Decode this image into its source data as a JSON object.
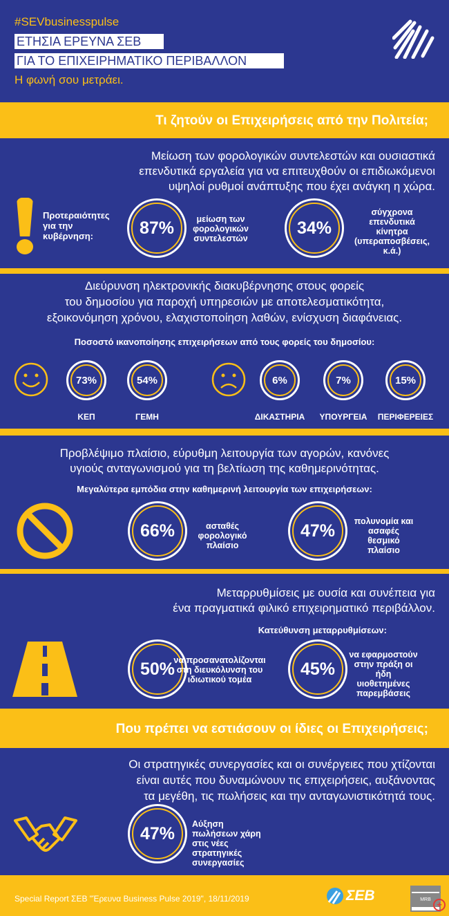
{
  "header": {
    "hashtag": "#SEVbusinesspulse",
    "title_line1": "ΕΤΗΣΙΑ ΕΡΕΥΝΑ ΣΕΒ",
    "title_line2": "ΓΙΑ ΤΟ ΕΠΙΧΕΙΡΗΜΑΤΙΚΟ ΠΕΡΙΒΑΛΛΟΝ",
    "tagline": "Η φωνή σου μετράει."
  },
  "band1": "Τι ζητούν οι Επιχειρήσεις από την Πολιτεία;",
  "s1": {
    "lead": [
      "Μείωση των φορολογικών συντελεστών και ουσιαστικά",
      "επενδυτικά εργαλεία για να επιτευχθούν οι επιδιωκόμενοι",
      "υψηλοί ρυθμοί ανάπτυξης που έχει ανάγκη η χώρα."
    ],
    "label": "Προτεραιότητες για την κυβέρνηση:",
    "items": [
      {
        "value": "87%",
        "text": "μείωση των φορολογικών συντελεστών"
      },
      {
        "value": "34%",
        "text": "σύγχρονα επενδυτικά κίνητρα (υπεραποσβέσεις, κ.ά.)"
      }
    ]
  },
  "s2": {
    "lead": [
      "Διεύρυνση ηλεκτρονικής διακυβέρνησης στους φορείς",
      "του δημοσίου για παροχή υπηρεσιών με αποτελεσματικότητα,",
      "εξοικονόμηση χρόνου, ελαχιστοποίηση λαθών, ενίσχυση διαφάνειας."
    ],
    "subtitle": "Ποσοστό ικανοποίησης επιχειρήσεων από τους φορείς του δημοσίου:",
    "items": [
      {
        "value": "73%",
        "label": "ΚΕΠ"
      },
      {
        "value": "54%",
        "label": "ΓΕΜΗ"
      },
      {
        "value": "6%",
        "label": "ΔΙΚΑΣΤΗΡΙΑ"
      },
      {
        "value": "7%",
        "label": "ΥΠΟΥΡΓΕΙΑ"
      },
      {
        "value": "15%",
        "label": "ΠΕΡΙΦΕΡΕΙΕΣ"
      }
    ]
  },
  "s3": {
    "lead": [
      "Προβλέψιμο πλαίσιο, εύρυθμη λειτουργία των αγορών, κανόνες",
      "υγιούς ανταγωνισμού για τη βελτίωση της καθημερινότητας."
    ],
    "subtitle": "Μεγαλύτερα εμπόδια στην καθημερινή λειτουργία των επιχειρήσεων:",
    "items": [
      {
        "value": "66%",
        "text": "ασταθές φορολογικό πλαίσιο"
      },
      {
        "value": "47%",
        "text": "πολυνομία και ασαφές θεσμικό πλαίσιο"
      }
    ]
  },
  "s4": {
    "lead": [
      "Μεταρρυθμίσεις με ουσία και συνέπεια για",
      "ένα πραγματικά φιλικό επιχειρηματικό περιβάλλον."
    ],
    "subtitle": "Κατεύθυνση μεταρρυθμίσεων:",
    "items": [
      {
        "value": "50%",
        "text": "να προσανατολίζονται στη διευκόλυνση του ιδιωτικού τομέα"
      },
      {
        "value": "45%",
        "text": "να εφαρμοστούν στην πράξη οι ήδη υιοθετημένες παρεμβάσεις"
      }
    ]
  },
  "band2": "Που πρέπει να εστιάσουν οι ίδιες οι Επιχειρήσεις;",
  "s5": {
    "lead": [
      "Οι στρατηγικές συνεργασίες και οι συνέργειες που χτίζονται",
      "είναι αυτές που δυναμώνουν τις επιχειρήσεις, αυξάνοντας",
      "τα μεγέθη, τις πωλήσεις και την ανταγωνιστικότητά τους."
    ],
    "items": [
      {
        "value": "47%",
        "text": "Αύξηση πωλήσεων χάρη στις νέες στρατηγικές συνεργασίες"
      }
    ]
  },
  "footer": {
    "source": "Special Report ΣΕΒ \"Έρευνα Business Pulse 2019\", 18/11/2019",
    "logo_sev": "ΣΕΒ",
    "logo_mrb": "MRB HELLAS SA"
  },
  "colors": {
    "blue": "#2c3790",
    "yellow": "#fbbf17"
  }
}
